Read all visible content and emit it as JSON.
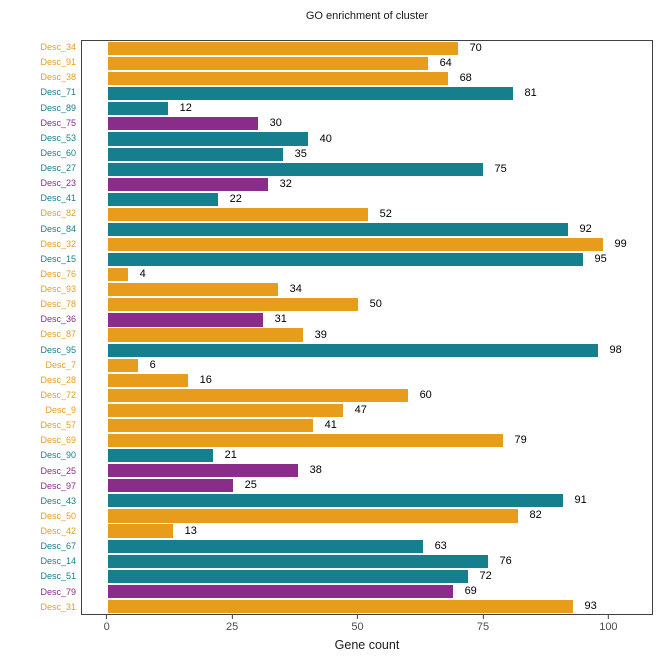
{
  "title": "GO enrichment of cluster",
  "chart_data": {
    "type": "bar",
    "orientation": "horizontal",
    "title": "GO enrichment of cluster",
    "xlabel": "Gene count",
    "ylabel": "",
    "xlim": [
      0,
      108
    ],
    "grid": false,
    "legend": "none",
    "xticks": [
      0,
      25,
      50,
      75,
      100
    ],
    "palette": {
      "orange": "#E89C1C",
      "teal": "#157F8D",
      "purple": "#8A2D8A"
    },
    "categories": [
      "Desc_34",
      "Desc_91",
      "Desc_38",
      "Desc_71",
      "Desc_89",
      "Desc_75",
      "Desc_53",
      "Desc_60",
      "Desc_27",
      "Desc_23",
      "Desc_41",
      "Desc_82",
      "Desc_84",
      "Desc_32",
      "Desc_15",
      "Desc_76",
      "Desc_93",
      "Desc_78",
      "Desc_36",
      "Desc_87",
      "Desc_95",
      "Desc_7",
      "Desc_28",
      "Desc_72",
      "Desc_9",
      "Desc_57",
      "Desc_69",
      "Desc_90",
      "Desc_25",
      "Desc_97",
      "Desc_43",
      "Desc_50",
      "Desc_42",
      "Desc_67",
      "Desc_14",
      "Desc_51",
      "Desc_79",
      "Desc_31"
    ],
    "values": [
      70,
      64,
      68,
      81,
      12,
      30,
      40,
      35,
      75,
      32,
      22,
      52,
      92,
      99,
      95,
      4,
      34,
      50,
      31,
      39,
      98,
      6,
      16,
      60,
      47,
      41,
      79,
      21,
      38,
      25,
      91,
      82,
      13,
      63,
      76,
      72,
      69,
      93
    ],
    "groups": [
      "orange",
      "orange",
      "orange",
      "teal",
      "teal",
      "purple",
      "teal",
      "teal",
      "teal",
      "purple",
      "teal",
      "orange",
      "teal",
      "orange",
      "teal",
      "orange",
      "orange",
      "orange",
      "purple",
      "orange",
      "teal",
      "orange",
      "orange",
      "orange",
      "orange",
      "orange",
      "orange",
      "teal",
      "purple",
      "purple",
      "teal",
      "orange",
      "orange",
      "teal",
      "teal",
      "teal",
      "purple",
      "orange"
    ]
  }
}
